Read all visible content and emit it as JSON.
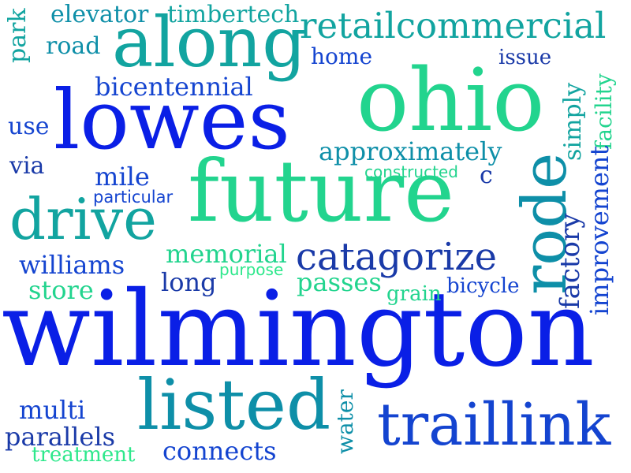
{
  "words": {
    "wilmington": "wilmington",
    "future": "future",
    "lowes": "lowes",
    "ohio": "ohio",
    "along": "along",
    "listed": "listed",
    "traillink": "traillink",
    "drive": "drive",
    "rode": "rode",
    "catagorize": "catagorize",
    "retailcommercial": "retailcommercial",
    "approximately": "approximately",
    "bicentennial": "bicentennial",
    "memorial": "memorial",
    "passes": "passes",
    "elevator": "elevator",
    "timbertech": "timbertech",
    "road": "road",
    "home": "home",
    "issue": "issue",
    "park": "park",
    "use": "use",
    "via": "via",
    "mile": "mile",
    "particular": "particular",
    "constructed": "constructed",
    "c": "c",
    "williams": "williams",
    "store": "store",
    "long": "long",
    "purpose": "purpose",
    "grain": "grain",
    "bicycle": "bicycle",
    "simply": "simply",
    "facility": "facility",
    "improvement": "improvement",
    "factory": "factory",
    "water": "water",
    "multi": "multi",
    "parallels": "parallels",
    "treatment": "treatment",
    "connects": "connects"
  },
  "colors": {
    "blue": "#0a1fe6",
    "royal": "#1444d0",
    "navy": "#1a3aa8",
    "teal": "#0e8fa8",
    "aqua": "#12a4a0",
    "green": "#22d48e",
    "mint": "#2ee88c"
  }
}
